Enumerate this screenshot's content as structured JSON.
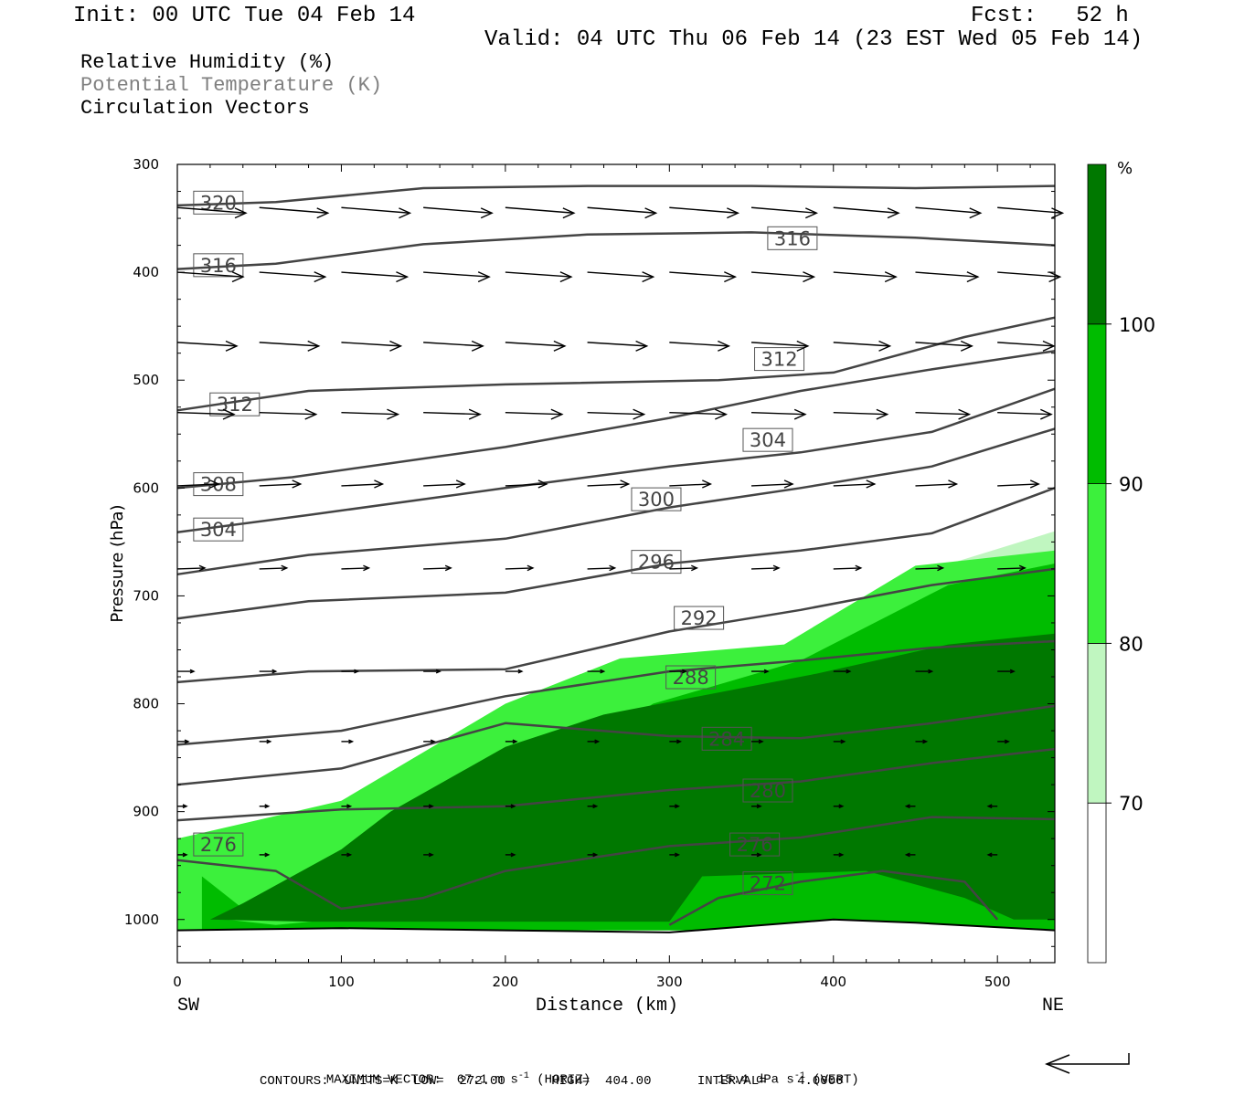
{
  "header": {
    "init": "Init: 00 UTC Tue 04 Feb 14",
    "fcst": "Fcst:   52 h",
    "valid": "Valid: 04 UTC Thu 06 Feb 14 (23 EST Wed 05 Feb 14)"
  },
  "legend": {
    "rh": "Relative Humidity (%)",
    "pt": "Potential Temperature (K)",
    "cv": "Circulation Vectors"
  },
  "chart_data": {
    "type": "cross-section",
    "xlabel": "Distance (km)",
    "ylabel": "Pressure (hPa)",
    "xlim": [
      0,
      535
    ],
    "ylim": [
      1040,
      300
    ],
    "x_ticks": [
      0,
      100,
      200,
      300,
      400,
      500
    ],
    "y_ticks": [
      300,
      400,
      500,
      600,
      700,
      800,
      900,
      1000
    ],
    "x_end_labels": {
      "left": "SW",
      "right": "NE"
    },
    "colorbar": {
      "unit": "%",
      "levels": [
        70,
        80,
        90,
        100
      ],
      "colors": [
        "#ffffff",
        "#c0f6c0",
        "#3cf03c",
        "#00bc00",
        "#007800"
      ]
    },
    "theta_contours": [
      {
        "label": "320",
        "label_pos": [
          25,
          335
        ],
        "points": [
          [
            0,
            338
          ],
          [
            60,
            335
          ],
          [
            150,
            322
          ],
          [
            250,
            320
          ],
          [
            350,
            320
          ],
          [
            450,
            322
          ],
          [
            535,
            320
          ]
        ]
      },
      {
        "label": "316",
        "label_pos": [
          25,
          393
        ],
        "points": [
          [
            0,
            397
          ],
          [
            60,
            392
          ],
          [
            150,
            374
          ],
          [
            250,
            365
          ],
          [
            350,
            363
          ],
          [
            450,
            368
          ],
          [
            535,
            375
          ]
        ]
      },
      {
        "label": "316",
        "label_pos": [
          375,
          368
        ],
        "points": []
      },
      {
        "label": "312",
        "label_pos": [
          35,
          522
        ],
        "points": [
          [
            0,
            528
          ],
          [
            80,
            510
          ],
          [
            200,
            504
          ],
          [
            330,
            500
          ],
          [
            400,
            493
          ],
          [
            480,
            460
          ],
          [
            535,
            442
          ]
        ]
      },
      {
        "label": "312",
        "label_pos": [
          367,
          480
        ],
        "points": []
      },
      {
        "label": "308",
        "label_pos": [
          25,
          596
        ],
        "points": [
          [
            0,
            600
          ],
          [
            70,
            590
          ],
          [
            200,
            562
          ],
          [
            300,
            535
          ],
          [
            380,
            510
          ],
          [
            460,
            490
          ],
          [
            535,
            473
          ]
        ]
      },
      {
        "label": "304",
        "label_pos": [
          25,
          638
        ],
        "points": [
          [
            0,
            641
          ],
          [
            80,
            625
          ],
          [
            200,
            600
          ],
          [
            300,
            580
          ],
          [
            380,
            567
          ],
          [
            460,
            548
          ],
          [
            535,
            508
          ]
        ]
      },
      {
        "label": "304",
        "label_pos": [
          360,
          555
        ],
        "points": []
      },
      {
        "label": "300",
        "label_pos": [
          292,
          610
        ],
        "points": [
          [
            0,
            680
          ],
          [
            80,
            662
          ],
          [
            200,
            647
          ],
          [
            300,
            618
          ],
          [
            380,
            600
          ],
          [
            460,
            580
          ],
          [
            535,
            545
          ]
        ]
      },
      {
        "label": "296",
        "label_pos": [
          292,
          668
        ],
        "points": [
          [
            0,
            721
          ],
          [
            80,
            705
          ],
          [
            200,
            697
          ],
          [
            300,
            670
          ],
          [
            380,
            658
          ],
          [
            460,
            642
          ],
          [
            535,
            600
          ]
        ]
      },
      {
        "label": "292",
        "label_pos": [
          318,
          720
        ],
        "points": [
          [
            0,
            780
          ],
          [
            80,
            770
          ],
          [
            200,
            768
          ],
          [
            300,
            733
          ],
          [
            380,
            713
          ],
          [
            460,
            690
          ],
          [
            535,
            675
          ]
        ]
      },
      {
        "label": "288",
        "label_pos": [
          313,
          775
        ],
        "points": [
          [
            0,
            838
          ],
          [
            100,
            825
          ],
          [
            200,
            793
          ],
          [
            300,
            770
          ],
          [
            380,
            760
          ],
          [
            460,
            748
          ],
          [
            535,
            742
          ]
        ]
      },
      {
        "label": "284",
        "label_pos": [
          335,
          832
        ],
        "points": [
          [
            0,
            875
          ],
          [
            100,
            860
          ],
          [
            200,
            818
          ],
          [
            300,
            830
          ],
          [
            380,
            832
          ],
          [
            460,
            818
          ],
          [
            535,
            802
          ]
        ]
      },
      {
        "label": "280",
        "label_pos": [
          360,
          880
        ],
        "points": [
          [
            0,
            908
          ],
          [
            100,
            898
          ],
          [
            200,
            895
          ],
          [
            300,
            880
          ],
          [
            380,
            872
          ],
          [
            460,
            855
          ],
          [
            535,
            842
          ]
        ]
      },
      {
        "label": "276",
        "label_pos": [
          25,
          930
        ],
        "points": [
          [
            0,
            945
          ],
          [
            60,
            955
          ],
          [
            100,
            990
          ],
          [
            150,
            980
          ],
          [
            200,
            955
          ],
          [
            300,
            932
          ],
          [
            380,
            924
          ],
          [
            460,
            905
          ],
          [
            535,
            907
          ]
        ]
      },
      {
        "label": "276",
        "label_pos": [
          352,
          930
        ],
        "points": []
      },
      {
        "label": "272",
        "label_pos": [
          360,
          966
        ],
        "points": [
          [
            300,
            1005
          ],
          [
            330,
            980
          ],
          [
            380,
            965
          ],
          [
            430,
            955
          ],
          [
            480,
            965
          ],
          [
            500,
            1000
          ]
        ]
      }
    ],
    "surface": [
      [
        0,
        1010
      ],
      [
        100,
        1008
      ],
      [
        200,
        1010
      ],
      [
        300,
        1012
      ],
      [
        400,
        1000
      ],
      [
        450,
        1003
      ],
      [
        535,
        1010
      ]
    ],
    "humidity_regions": [
      {
        "level": 70,
        "points": [
          [
            0,
            965
          ],
          [
            100,
            900
          ],
          [
            200,
            855
          ],
          [
            250,
            808
          ],
          [
            300,
            780
          ],
          [
            380,
            748
          ],
          [
            450,
            680
          ],
          [
            535,
            640
          ],
          [
            535,
            1010
          ],
          [
            0,
            1010
          ]
        ]
      },
      {
        "level": 80,
        "points": [
          [
            0,
            925
          ],
          [
            100,
            890
          ],
          [
            200,
            800
          ],
          [
            270,
            758
          ],
          [
            370,
            745
          ],
          [
            450,
            672
          ],
          [
            535,
            658
          ],
          [
            535,
            1010
          ],
          [
            0,
            1010
          ]
        ]
      },
      {
        "level": 90,
        "points": [
          [
            15,
            960
          ],
          [
            40,
            990
          ],
          [
            30,
            1000
          ],
          [
            60,
            1005
          ],
          [
            130,
            995
          ],
          [
            150,
            930
          ],
          [
            230,
            860
          ],
          [
            290,
            800
          ],
          [
            380,
            760
          ],
          [
            470,
            690
          ],
          [
            535,
            670
          ],
          [
            535,
            1010
          ],
          [
            15,
            1010
          ]
        ]
      },
      {
        "level": 100,
        "points": [
          [
            100,
            935
          ],
          [
            130,
            900
          ],
          [
            200,
            840
          ],
          [
            260,
            810
          ],
          [
            390,
            772
          ],
          [
            470,
            745
          ],
          [
            535,
            735
          ],
          [
            535,
            1000
          ],
          [
            510,
            1000
          ],
          [
            480,
            980
          ],
          [
            420,
            955
          ],
          [
            320,
            960
          ],
          [
            300,
            1002
          ],
          [
            80,
            1002
          ],
          [
            20,
            1000
          ],
          [
            40,
            985
          ]
        ]
      }
    ],
    "vector_stats": {
      "max_horiz": "67.1 m s-1",
      "max_vert": "15.4 dPa s-1"
    },
    "contour_stats": {
      "units": "K",
      "low": "272.00",
      "high": "404.00",
      "interval": "4.0000"
    }
  },
  "footer": {
    "max_vector": "MAXIMUM VECTOR:  67.1 m s",
    "horiz": "(HORIZ)",
    "vert_val": "15.4 dPa s",
    "vert": "(VERT)",
    "contours": "CONTOURS:  UNITS=K  LOW=  272.00      HIGH=  404.00      INTERVAL=    4.0000"
  }
}
